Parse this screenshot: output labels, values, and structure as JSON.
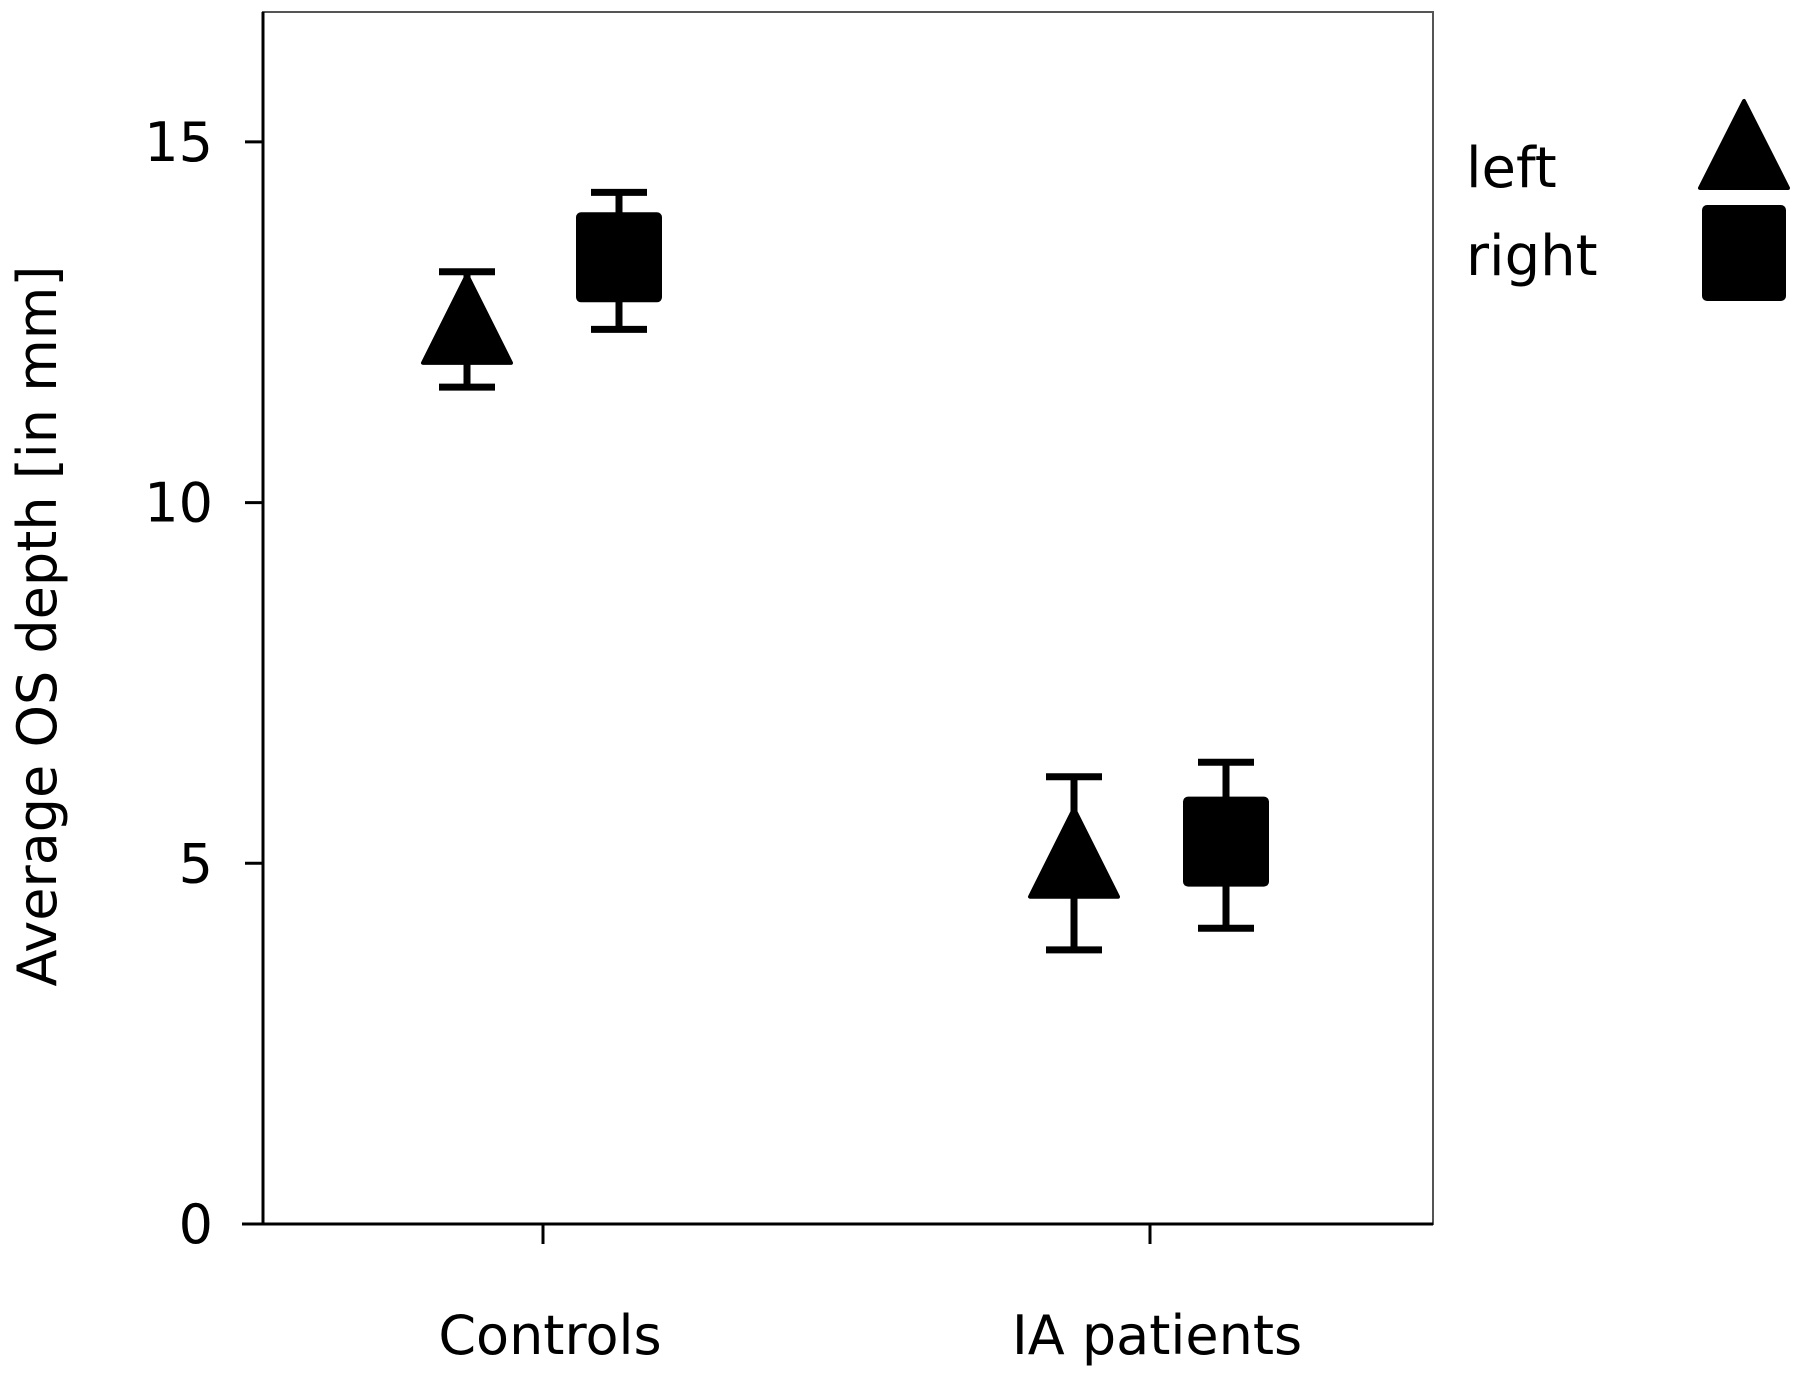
{
  "chart_data": {
    "type": "scatter",
    "title": "",
    "xlabel": "",
    "ylabel": "Average OS depth [in mm]",
    "categories": [
      "Controls",
      "IA patients"
    ],
    "ylim": [
      0,
      16.8
    ],
    "yticks": [
      0,
      5,
      10,
      15
    ],
    "grid": false,
    "legend_position": "top-right (outside plot)",
    "series": [
      {
        "name": "left",
        "marker": "triangle",
        "values": [
          12.4,
          5.0
        ],
        "error_low": [
          11.6,
          3.8
        ],
        "error_high": [
          13.2,
          6.2
        ]
      },
      {
        "name": "right",
        "marker": "square",
        "values": [
          13.4,
          5.3
        ],
        "error_low": [
          12.4,
          4.1
        ],
        "error_high": [
          14.3,
          6.4
        ]
      }
    ],
    "colors": {
      "markers": "#000000",
      "axes": "#000000",
      "frame": "#555555"
    }
  }
}
